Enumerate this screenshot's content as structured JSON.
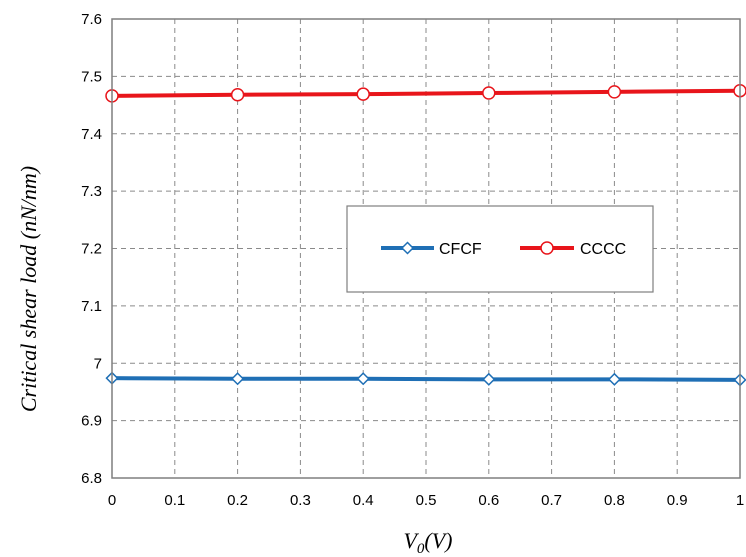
{
  "chart_data": {
    "type": "line",
    "title": "",
    "xlabel": "V",
    "xlabel_sub": "0",
    "xlabel_suffix": "(V)",
    "ylabel": "Critical shear load (nN/nm)",
    "xlim": [
      0,
      1
    ],
    "ylim": [
      6.8,
      7.6
    ],
    "xticks": [
      "0",
      "0.1",
      "0.2",
      "0.3",
      "0.4",
      "0.5",
      "0.6",
      "0.7",
      "0.8",
      "0.9",
      "1"
    ],
    "yticks": [
      "6.8",
      "6.9",
      "7",
      "7.1",
      "7.2",
      "7.3",
      "7.4",
      "7.5",
      "7.6"
    ],
    "grid": true,
    "legend_position": "center-right",
    "x": [
      0,
      0.2,
      0.4,
      0.6,
      0.8,
      1.0
    ],
    "series": [
      {
        "name": "CFCF",
        "values": [
          6.974,
          6.973,
          6.973,
          6.972,
          6.972,
          6.971
        ],
        "color": "#1f6fb5",
        "marker": "diamond"
      },
      {
        "name": "CCCC",
        "values": [
          7.466,
          7.468,
          7.469,
          7.471,
          7.473,
          7.475
        ],
        "color": "#e8151b",
        "marker": "circle"
      }
    ]
  }
}
